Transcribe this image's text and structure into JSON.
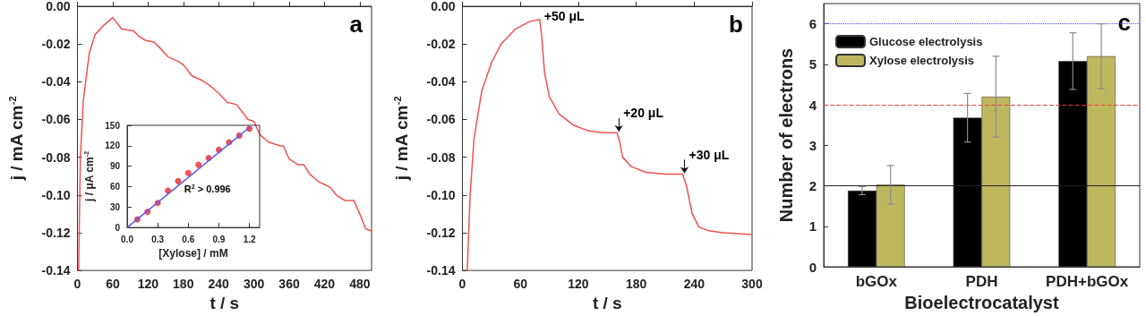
{
  "chart_data": [
    {
      "type": "line",
      "xlabel": "t / s",
      "ylabel": "j / mA cm$^{-2}$",
      "annotations": [
        "a"
      ],
      "xlim": [
        0,
        500
      ],
      "xticks": [
        0,
        60,
        120,
        180,
        240,
        300,
        360,
        420,
        480
      ],
      "ylim": [
        -0.14,
        0
      ],
      "yticks": [
        {
          "value": 0,
          "label": "0.00"
        },
        {
          "value": -0.02,
          "label": "-0.02"
        },
        {
          "value": -0.04,
          "label": "-0.04"
        },
        {
          "value": -0.06,
          "label": "-0.06"
        },
        {
          "value": -0.08,
          "label": "-0.08"
        },
        {
          "value": -0.1,
          "label": "-0.10"
        },
        {
          "value": -0.12,
          "label": "-0.12"
        },
        {
          "value": -0.14,
          "label": "-0.14"
        }
      ],
      "series": [
        {
          "color": "#f0524f",
          "x": [
            2,
            5,
            10,
            20,
            30,
            45,
            60,
            65,
            75,
            95,
            105,
            115,
            130,
            140,
            155,
            170,
            180,
            195,
            210,
            225,
            240,
            255,
            270,
            280,
            290,
            300,
            310,
            325,
            345,
            350,
            360,
            375,
            385,
            395,
            410,
            430,
            440,
            455,
            470,
            480,
            490,
            500
          ],
          "values": [
            -0.14,
            -0.08,
            -0.05,
            -0.025,
            -0.015,
            -0.01,
            -0.006,
            -0.008,
            -0.012,
            -0.013,
            -0.016,
            -0.018,
            -0.019,
            -0.022,
            -0.027,
            -0.029,
            -0.031,
            -0.037,
            -0.039,
            -0.042,
            -0.046,
            -0.051,
            -0.052,
            -0.056,
            -0.06,
            -0.061,
            -0.068,
            -0.072,
            -0.074,
            -0.074,
            -0.081,
            -0.084,
            -0.084,
            -0.089,
            -0.093,
            -0.096,
            -0.1,
            -0.103,
            -0.103,
            -0.11,
            -0.118,
            -0.119
          ]
        }
      ]
    },
    {
      "type": "scatter",
      "xlabel": "[Xylose] / mM",
      "ylabel": "j / μA cm$^{-2}$",
      "xlim": [
        0,
        1.3
      ],
      "xticks": [
        {
          "value": 0,
          "label": "0.0"
        },
        {
          "value": 0.3,
          "label": "0.3"
        },
        {
          "value": 0.6,
          "label": "0.6"
        },
        {
          "value": 0.9,
          "label": "0.9"
        },
        {
          "value": 1.2,
          "label": "1.2"
        }
      ],
      "ylim": [
        0,
        150
      ],
      "yticks": [
        0,
        30,
        60,
        90,
        120,
        150
      ],
      "annotations": [
        "R$^{2}$ > 0.996"
      ],
      "series": [
        {
          "color": "#e8262a",
          "x": [
            0.1,
            0.2,
            0.3,
            0.4,
            0.5,
            0.6,
            0.7,
            0.8,
            0.9,
            1.0,
            1.1,
            1.2
          ],
          "values": [
            12,
            23,
            36,
            54,
            68,
            80,
            92,
            102,
            114,
            125,
            135,
            145
          ]
        },
        {
          "type": "line",
          "color": "#5b5bf0",
          "x": [
            0,
            1.2
          ],
          "values": [
            0,
            147
          ]
        }
      ]
    },
    {
      "type": "line",
      "xlabel": "t / s",
      "ylabel": "j / mA cm$^{-2}$",
      "xlim": [
        0,
        300
      ],
      "xticks": [
        0,
        60,
        120,
        180,
        240,
        300
      ],
      "ylim": [
        -0.14,
        0
      ],
      "yticks": [
        {
          "value": 0,
          "label": "0.00"
        },
        {
          "value": -0.02,
          "label": "-0.02"
        },
        {
          "value": -0.04,
          "label": "-0.04"
        },
        {
          "value": -0.06,
          "label": "-0.06"
        },
        {
          "value": -0.08,
          "label": "-0.08"
        },
        {
          "value": -0.1,
          "label": "-0.10"
        },
        {
          "value": -0.12,
          "label": "-0.12"
        },
        {
          "value": -0.14,
          "label": "-0.14"
        }
      ],
      "annotations": [
        "b",
        {
          "text": "+50 μL",
          "x": 80,
          "y": -0.007
        },
        {
          "text": "+20 μL",
          "x": 162,
          "y": -0.067
        },
        {
          "text": "+30 μL",
          "x": 230,
          "y": -0.089
        }
      ],
      "series": [
        {
          "color": "#f0524f",
          "x": [
            5,
            8,
            12,
            20,
            30,
            40,
            55,
            70,
            80,
            82,
            85,
            90,
            100,
            115,
            130,
            145,
            160,
            163,
            166,
            175,
            190,
            210,
            228,
            232,
            238,
            245,
            255,
            270,
            300
          ],
          "values": [
            -0.14,
            -0.1,
            -0.07,
            -0.045,
            -0.03,
            -0.02,
            -0.012,
            -0.008,
            -0.007,
            -0.015,
            -0.035,
            -0.048,
            -0.057,
            -0.063,
            -0.066,
            -0.067,
            -0.067,
            -0.072,
            -0.08,
            -0.085,
            -0.088,
            -0.089,
            -0.089,
            -0.095,
            -0.11,
            -0.117,
            -0.119,
            -0.12,
            -0.121
          ]
        }
      ]
    },
    {
      "type": "bar",
      "xlabel": "Bioelectrocatalyst",
      "ylabel": "Number of electrons",
      "annotations": [
        "c"
      ],
      "legend": "top left",
      "categories": [
        "bGOx",
        "PDH",
        "PDH+bGOx"
      ],
      "ylim": [
        0,
        6.5
      ],
      "yticks": [
        0,
        1,
        2,
        3,
        4,
        5,
        6
      ],
      "ref_lines": [
        {
          "axis": "y",
          "value": 2,
          "color": "#222222",
          "line_style": "solid"
        },
        {
          "axis": "y",
          "value": 4,
          "color": "#f03c3c",
          "line_style": "dashed"
        },
        {
          "axis": "y",
          "value": 6,
          "color": "#4a4af0",
          "line_style": "dotted"
        }
      ],
      "series": [
        {
          "name": "Glucose electrolysis",
          "color": "#000000",
          "values": [
            1.88,
            3.68,
            5.08
          ],
          "errors": [
            0.1,
            0.6,
            0.7
          ]
        },
        {
          "name": "Xylose electrolysis",
          "color": "#bdb85e",
          "values": [
            2.03,
            4.2,
            5.2
          ],
          "errors": [
            [
              1.55,
              2.5
            ],
            [
              3.2,
              5.2
            ],
            [
              4.4,
              6.0
            ]
          ]
        }
      ]
    }
  ]
}
